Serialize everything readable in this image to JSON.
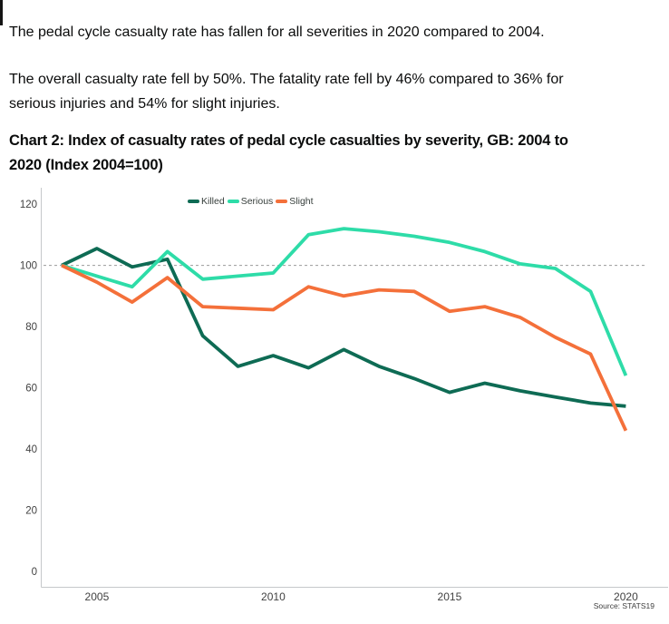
{
  "page": {
    "intro_1": "The pedal cycle casualty rate has fallen for all severities in 2020 compared to 2004.",
    "intro_2": {
      "line1": "The overall casualty rate fell by 50%. The fatality rate fell by 46% compared to 36% for",
      "line2": "serious injuries and 54% for slight injuries."
    },
    "chart_heading": {
      "line1": "Chart 2: Index of casualty rates of pedal cycle casualties by severity, GB: 2004 to",
      "line2": "2020 (Index 2004=100)"
    },
    "source_note": "Source: STATS19"
  },
  "colors": {
    "killed": "#0e6b54",
    "serious": "#2edca8",
    "slight": "#f4703a",
    "axis": "#c6c8ca",
    "reference_line": "#9b9b9b",
    "tick_text": "#414141"
  },
  "chart_data": {
    "type": "line",
    "title": "Chart 2: Index of casualty rates of pedal cycle casualties by severity, GB: 2004 to 2020 (Index 2004=100)",
    "xlabel": "",
    "ylabel": "",
    "x": [
      2004,
      2005,
      2006,
      2007,
      2008,
      2009,
      2010,
      2011,
      2012,
      2013,
      2014,
      2015,
      2016,
      2017,
      2018,
      2019,
      2020
    ],
    "series": [
      {
        "name": "Killed",
        "color": "#0e6b54",
        "values": [
          100,
          105.5,
          99.5,
          102,
          77,
          67,
          70.5,
          66.5,
          72.5,
          67,
          63,
          58.5,
          61.5,
          59,
          57,
          55,
          54
        ]
      },
      {
        "name": "Serious",
        "color": "#2edca8",
        "values": [
          100,
          96.5,
          93,
          104.5,
          95.5,
          96.5,
          97.5,
          110,
          112,
          111,
          109.5,
          107.5,
          104.5,
          100.5,
          99,
          91.5,
          64
        ]
      },
      {
        "name": "Slight",
        "color": "#f4703a",
        "values": [
          100,
          94.5,
          88,
          96,
          86.5,
          86,
          85.5,
          93,
          90,
          92,
          91.5,
          85,
          86.5,
          83,
          76.5,
          71,
          46
        ]
      }
    ],
    "ylim": [
      0,
      120
    ],
    "yticks": [
      0,
      20,
      40,
      60,
      80,
      100,
      120
    ],
    "xticks": [
      2005,
      2010,
      2015,
      2020
    ],
    "reference_line": 100,
    "legend_position": "top",
    "grid": false,
    "index_base": "2004=100"
  }
}
